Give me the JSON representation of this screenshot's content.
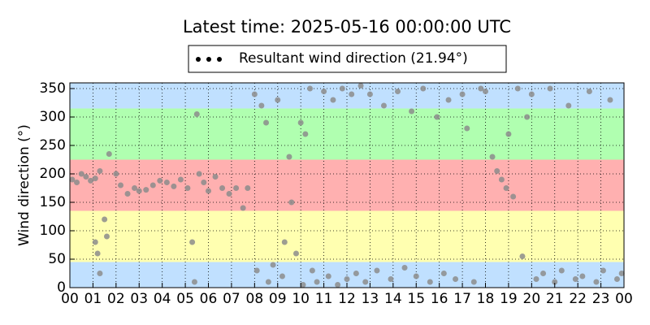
{
  "chart_data": {
    "type": "scatter",
    "title": "Latest time: 2025-05-16 00:00:00 UTC",
    "y_label": "Wind direction (°)",
    "legend": "upper center",
    "grid": true,
    "bands": [
      {
        "from": 0,
        "to": 45,
        "color": "#c0e0ff"
      },
      {
        "from": 45,
        "to": 135,
        "color": "#ffffb0"
      },
      {
        "from": 135,
        "to": 225,
        "color": "#ffb0b0"
      },
      {
        "from": 225,
        "to": 315,
        "color": "#b0ffb0"
      },
      {
        "from": 315,
        "to": 360,
        "color": "#c0e0ff"
      }
    ],
    "xlim": [
      0,
      24
    ],
    "xticks": [
      {
        "value": 0,
        "label": "00"
      },
      {
        "value": 1,
        "label": "01"
      },
      {
        "value": 2,
        "label": "02"
      },
      {
        "value": 3,
        "label": "03"
      },
      {
        "value": 4,
        "label": "04"
      },
      {
        "value": 5,
        "label": "05"
      },
      {
        "value": 6,
        "label": "06"
      },
      {
        "value": 7,
        "label": "07"
      },
      {
        "value": 8,
        "label": "08"
      },
      {
        "value": 9,
        "label": "09"
      },
      {
        "value": 10,
        "label": "10"
      },
      {
        "value": 11,
        "label": "11"
      },
      {
        "value": 12,
        "label": "12"
      },
      {
        "value": 13,
        "label": "13"
      },
      {
        "value": 14,
        "label": "14"
      },
      {
        "value": 15,
        "label": "15"
      },
      {
        "value": 16,
        "label": "16"
      },
      {
        "value": 17,
        "label": "17"
      },
      {
        "value": 18,
        "label": "18"
      },
      {
        "value": 19,
        "label": "19"
      },
      {
        "value": 20,
        "label": "20"
      },
      {
        "value": 21,
        "label": "21"
      },
      {
        "value": 22,
        "label": "22"
      },
      {
        "value": 23,
        "label": "23"
      },
      {
        "value": 24,
        "label": "00"
      }
    ],
    "ylim": [
      0,
      360
    ],
    "yticks": [
      0,
      50,
      100,
      150,
      200,
      250,
      300,
      350
    ],
    "series": [
      {
        "name": "Resultant wind direction (21.94°)",
        "color": "#8c8c8c",
        "x": [
          0.1,
          0.3,
          0.5,
          0.7,
          0.9,
          1.1,
          1.3,
          1.1,
          1.2,
          1.3,
          1.5,
          1.6,
          1.7,
          2.0,
          2.2,
          2.5,
          2.8,
          3.0,
          3.3,
          3.6,
          3.9,
          4.2,
          4.5,
          4.8,
          5.1,
          5.3,
          5.4,
          5.5,
          5.6,
          5.8,
          6.0,
          6.3,
          6.6,
          6.9,
          7.2,
          7.5,
          7.7,
          8.0,
          8.1,
          8.3,
          8.5,
          8.6,
          8.8,
          9.0,
          9.2,
          9.3,
          9.5,
          9.6,
          9.8,
          10.0,
          10.1,
          10.2,
          10.4,
          10.5,
          10.7,
          11.0,
          11.2,
          11.4,
          11.6,
          11.8,
          12.0,
          12.2,
          12.4,
          12.6,
          12.8,
          13.0,
          13.3,
          13.6,
          13.9,
          14.2,
          14.5,
          14.8,
          15.0,
          15.3,
          15.6,
          15.9,
          16.2,
          16.4,
          16.7,
          17.0,
          17.2,
          17.5,
          17.8,
          18.0,
          18.3,
          18.5,
          18.7,
          18.9,
          19.0,
          19.2,
          19.4,
          19.6,
          19.8,
          20.0,
          20.2,
          20.5,
          20.8,
          21.0,
          21.3,
          21.6,
          21.9,
          22.2,
          22.5,
          22.8,
          23.1,
          23.4,
          23.7,
          23.9
        ],
        "values": [
          190,
          185,
          200,
          195,
          188,
          192,
          205,
          80,
          60,
          25,
          120,
          90,
          235,
          200,
          180,
          165,
          175,
          170,
          172,
          180,
          188,
          185,
          178,
          190,
          175,
          80,
          10,
          305,
          200,
          185,
          170,
          195,
          175,
          165,
          175,
          140,
          175,
          340,
          30,
          320,
          290,
          10,
          40,
          330,
          20,
          80,
          230,
          150,
          60,
          290,
          5,
          270,
          350,
          30,
          10,
          345,
          20,
          330,
          5,
          350,
          15,
          340,
          25,
          355,
          10,
          340,
          30,
          320,
          15,
          345,
          35,
          310,
          20,
          350,
          10,
          300,
          25,
          330,
          15,
          340,
          280,
          10,
          350,
          345,
          230,
          205,
          190,
          175,
          270,
          160,
          350,
          55,
          300,
          340,
          15,
          25,
          350,
          10,
          30,
          320,
          15,
          20,
          345,
          10,
          30,
          330,
          15,
          25
        ]
      }
    ]
  }
}
